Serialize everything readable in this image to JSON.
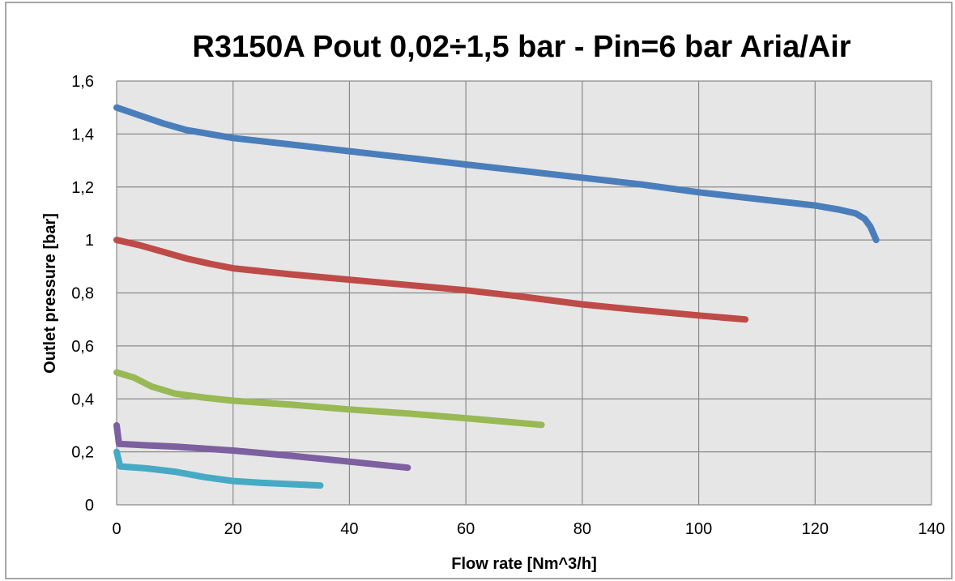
{
  "chart_data": {
    "type": "line",
    "title": "R3150A Pout 0,02÷1,5 bar - Pin=6 bar  Aria/Air",
    "xlabel": "Flow rate [Nm^3/h]",
    "ylabel": "Outlet pressure [bar]",
    "xlim": [
      0,
      140
    ],
    "ylim": [
      0,
      1.6
    ],
    "x_ticks": [
      0,
      20,
      40,
      60,
      80,
      100,
      120,
      140
    ],
    "x_tick_labels": [
      "0",
      "20",
      "40",
      "60",
      "80",
      "100",
      "120",
      "140"
    ],
    "y_ticks": [
      0,
      0.2,
      0.4,
      0.6,
      0.8,
      1.0,
      1.2,
      1.4,
      1.6
    ],
    "y_tick_labels": [
      "0",
      "0,2",
      "0,4",
      "0,6",
      "0,8",
      "1",
      "1,2",
      "1,4",
      "1,6"
    ],
    "grid": true,
    "legend": "none",
    "plot_background": "#e6e6e6",
    "series": [
      {
        "color": "#4a7ebb",
        "points": [
          [
            0,
            1.5
          ],
          [
            4,
            1.47
          ],
          [
            8,
            1.44
          ],
          [
            12,
            1.415
          ],
          [
            16,
            1.4
          ],
          [
            20,
            1.385
          ],
          [
            30,
            1.36
          ],
          [
            40,
            1.335
          ],
          [
            50,
            1.31
          ],
          [
            60,
            1.285
          ],
          [
            70,
            1.26
          ],
          [
            80,
            1.235
          ],
          [
            90,
            1.21
          ],
          [
            100,
            1.18
          ],
          [
            110,
            1.155
          ],
          [
            120,
            1.13
          ],
          [
            124,
            1.115
          ],
          [
            127,
            1.1
          ],
          [
            128.5,
            1.08
          ],
          [
            129.5,
            1.05
          ],
          [
            130.5,
            1.0
          ]
        ]
      },
      {
        "color": "#be4b48",
        "points": [
          [
            0,
            1.0
          ],
          [
            4,
            0.98
          ],
          [
            8,
            0.955
          ],
          [
            12,
            0.93
          ],
          [
            16,
            0.91
          ],
          [
            20,
            0.893
          ],
          [
            30,
            0.87
          ],
          [
            40,
            0.85
          ],
          [
            50,
            0.83
          ],
          [
            60,
            0.81
          ],
          [
            70,
            0.785
          ],
          [
            80,
            0.757
          ],
          [
            90,
            0.735
          ],
          [
            100,
            0.715
          ],
          [
            108,
            0.7
          ]
        ]
      },
      {
        "color": "#98b954",
        "points": [
          [
            0,
            0.5
          ],
          [
            3,
            0.48
          ],
          [
            6,
            0.447
          ],
          [
            10,
            0.42
          ],
          [
            15,
            0.405
          ],
          [
            20,
            0.393
          ],
          [
            30,
            0.378
          ],
          [
            40,
            0.36
          ],
          [
            50,
            0.345
          ],
          [
            60,
            0.327
          ],
          [
            73,
            0.302
          ]
        ]
      },
      {
        "color": "#7d60a0",
        "points": [
          [
            0,
            0.3
          ],
          [
            0.4,
            0.23
          ],
          [
            5,
            0.225
          ],
          [
            10,
            0.22
          ],
          [
            20,
            0.205
          ],
          [
            30,
            0.185
          ],
          [
            40,
            0.163
          ],
          [
            50,
            0.14
          ]
        ]
      },
      {
        "color": "#46aac5",
        "points": [
          [
            0,
            0.2
          ],
          [
            0.6,
            0.145
          ],
          [
            5,
            0.138
          ],
          [
            10,
            0.125
          ],
          [
            15,
            0.105
          ],
          [
            20,
            0.09
          ],
          [
            25,
            0.083
          ],
          [
            35,
            0.073
          ]
        ]
      }
    ]
  }
}
